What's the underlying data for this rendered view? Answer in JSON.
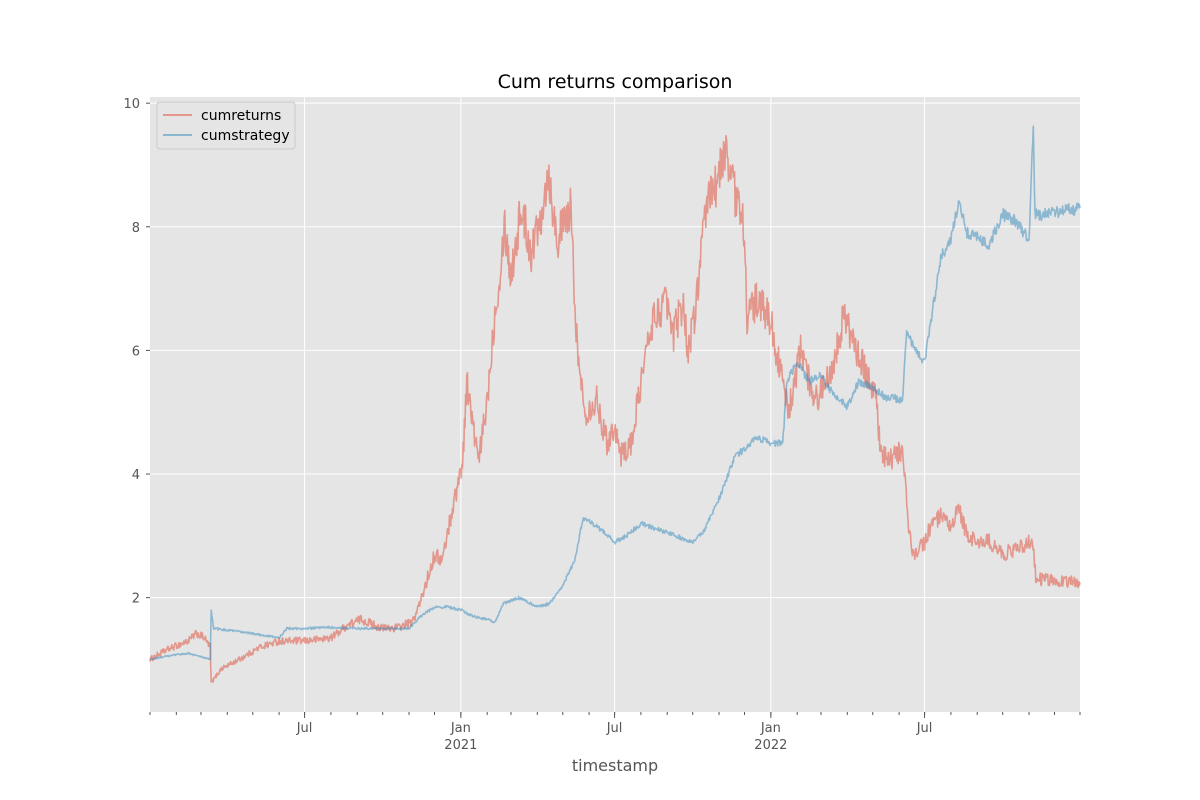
{
  "chart_data": {
    "type": "line",
    "title": "Cum returns comparison",
    "xlabel": "timestamp",
    "ylabel": "",
    "style": "ggplot",
    "grid": true,
    "legend_position": "top-left",
    "xlim": [
      "2020-01-01",
      "2022-12-31"
    ],
    "ylim": [
      0.15,
      10.1
    ],
    "x_ticks": [
      {
        "date": "2020-07-01",
        "label": "Jul",
        "sublabel": ""
      },
      {
        "date": "2021-01-01",
        "label": "Jan",
        "sublabel": "2021"
      },
      {
        "date": "2021-07-01",
        "label": "Jul",
        "sublabel": ""
      },
      {
        "date": "2022-01-01",
        "label": "Jan",
        "sublabel": "2022"
      },
      {
        "date": "2022-07-01",
        "label": "Jul",
        "sublabel": ""
      }
    ],
    "y_ticks": [
      2,
      4,
      6,
      8,
      10
    ],
    "series": [
      {
        "name": "cumreturns",
        "color": "#E24A33",
        "opacity": 0.5,
        "points": [
          [
            "2020-01-01",
            1.0
          ],
          [
            "2020-01-20",
            1.15
          ],
          [
            "2020-02-15",
            1.3
          ],
          [
            "2020-02-25",
            1.42
          ],
          [
            "2020-03-05",
            1.35
          ],
          [
            "2020-03-12",
            1.2
          ],
          [
            "2020-03-13",
            0.62
          ],
          [
            "2020-03-25",
            0.85
          ],
          [
            "2020-04-15",
            1.0
          ],
          [
            "2020-05-10",
            1.2
          ],
          [
            "2020-06-01",
            1.3
          ],
          [
            "2020-07-01",
            1.3
          ],
          [
            "2020-08-01",
            1.35
          ],
          [
            "2020-08-20",
            1.55
          ],
          [
            "2020-09-05",
            1.65
          ],
          [
            "2020-10-01",
            1.5
          ],
          [
            "2020-10-20",
            1.52
          ],
          [
            "2020-11-05",
            1.6
          ],
          [
            "2020-11-15",
            1.95
          ],
          [
            "2020-12-01",
            2.7
          ],
          [
            "2020-12-10",
            2.6
          ],
          [
            "2020-12-20",
            3.3
          ],
          [
            "2021-01-03",
            4.2
          ],
          [
            "2021-01-08",
            5.5
          ],
          [
            "2021-01-15",
            4.8
          ],
          [
            "2021-01-22",
            4.2
          ],
          [
            "2021-02-01",
            5.2
          ],
          [
            "2021-02-10",
            6.6
          ],
          [
            "2021-02-18",
            7.5
          ],
          [
            "2021-02-21",
            8.1
          ],
          [
            "2021-03-01",
            7.2
          ],
          [
            "2021-03-13",
            8.3
          ],
          [
            "2021-03-25",
            7.6
          ],
          [
            "2021-04-05",
            8.2
          ],
          [
            "2021-04-14",
            8.9
          ],
          [
            "2021-04-24",
            7.8
          ],
          [
            "2021-05-05",
            8.1
          ],
          [
            "2021-05-10",
            8.3
          ],
          [
            "2021-05-19",
            5.8
          ],
          [
            "2021-05-28",
            5.0
          ],
          [
            "2021-06-10",
            5.2
          ],
          [
            "2021-06-22",
            4.5
          ],
          [
            "2021-07-01",
            4.8
          ],
          [
            "2021-07-08",
            4.3
          ],
          [
            "2021-07-21",
            4.5
          ],
          [
            "2021-08-01",
            5.5
          ],
          [
            "2021-08-15",
            6.5
          ],
          [
            "2021-09-01",
            6.8
          ],
          [
            "2021-09-07",
            6.2
          ],
          [
            "2021-09-20",
            6.8
          ],
          [
            "2021-09-25",
            6.0
          ],
          [
            "2021-10-03",
            6.5
          ],
          [
            "2021-10-10",
            7.5
          ],
          [
            "2021-10-20",
            8.5
          ],
          [
            "2021-11-01",
            8.8
          ],
          [
            "2021-11-10",
            9.3
          ],
          [
            "2021-11-20",
            8.5
          ],
          [
            "2021-12-01",
            8.0
          ],
          [
            "2021-12-04",
            6.5
          ],
          [
            "2021-12-15",
            6.8
          ],
          [
            "2022-01-01",
            6.5
          ],
          [
            "2022-01-10",
            5.8
          ],
          [
            "2022-01-22",
            5.0
          ],
          [
            "2022-02-05",
            6.0
          ],
          [
            "2022-02-15",
            5.5
          ],
          [
            "2022-02-25",
            5.2
          ],
          [
            "2022-03-15",
            5.8
          ],
          [
            "2022-03-29",
            6.6
          ],
          [
            "2022-04-10",
            6.0
          ],
          [
            "2022-04-25",
            5.6
          ],
          [
            "2022-05-05",
            5.3
          ],
          [
            "2022-05-10",
            4.3
          ],
          [
            "2022-05-20",
            4.2
          ],
          [
            "2022-06-05",
            4.4
          ],
          [
            "2022-06-13",
            3.0
          ],
          [
            "2022-06-18",
            2.7
          ],
          [
            "2022-07-01",
            2.9
          ],
          [
            "2022-07-10",
            3.2
          ],
          [
            "2022-07-20",
            3.3
          ],
          [
            "2022-08-01",
            3.1
          ],
          [
            "2022-08-10",
            3.45
          ],
          [
            "2022-08-20",
            3.0
          ],
          [
            "2022-09-01",
            2.9
          ],
          [
            "2022-09-15",
            2.9
          ],
          [
            "2022-10-01",
            2.7
          ],
          [
            "2022-10-20",
            2.8
          ],
          [
            "2022-11-05",
            2.95
          ],
          [
            "2022-11-09",
            2.3
          ],
          [
            "2022-12-31",
            2.25
          ]
        ]
      },
      {
        "name": "cumstrategy",
        "color": "#348ABD",
        "opacity": 0.5,
        "points": [
          [
            "2020-01-01",
            1.0
          ],
          [
            "2020-01-20",
            1.05
          ],
          [
            "2020-02-15",
            1.1
          ],
          [
            "2020-03-12",
            1.0
          ],
          [
            "2020-03-13",
            1.8
          ],
          [
            "2020-03-16",
            1.5
          ],
          [
            "2020-04-15",
            1.45
          ],
          [
            "2020-05-10",
            1.4
          ],
          [
            "2020-06-01",
            1.35
          ],
          [
            "2020-06-10",
            1.5
          ],
          [
            "2020-07-01",
            1.5
          ],
          [
            "2020-08-01",
            1.52
          ],
          [
            "2020-09-01",
            1.5
          ],
          [
            "2020-10-01",
            1.5
          ],
          [
            "2020-11-01",
            1.5
          ],
          [
            "2020-11-15",
            1.7
          ],
          [
            "2020-12-01",
            1.85
          ],
          [
            "2020-12-15",
            1.85
          ],
          [
            "2021-01-01",
            1.8
          ],
          [
            "2021-01-15",
            1.7
          ],
          [
            "2021-02-01",
            1.65
          ],
          [
            "2021-02-10",
            1.6
          ],
          [
            "2021-02-20",
            1.9
          ],
          [
            "2021-03-10",
            2.0
          ],
          [
            "2021-04-01",
            1.85
          ],
          [
            "2021-04-15",
            1.9
          ],
          [
            "2021-05-01",
            2.2
          ],
          [
            "2021-05-15",
            2.6
          ],
          [
            "2021-05-25",
            3.3
          ],
          [
            "2021-06-15",
            3.1
          ],
          [
            "2021-07-01",
            2.9
          ],
          [
            "2021-07-15",
            3.0
          ],
          [
            "2021-08-01",
            3.2
          ],
          [
            "2021-09-01",
            3.05
          ],
          [
            "2021-10-01",
            2.9
          ],
          [
            "2021-10-15",
            3.1
          ],
          [
            "2021-11-01",
            3.6
          ],
          [
            "2021-11-20",
            4.3
          ],
          [
            "2021-12-01",
            4.4
          ],
          [
            "2021-12-15",
            4.6
          ],
          [
            "2022-01-01",
            4.5
          ],
          [
            "2022-01-15",
            4.5
          ],
          [
            "2022-01-20",
            5.5
          ],
          [
            "2022-02-01",
            5.8
          ],
          [
            "2022-02-15",
            5.5
          ],
          [
            "2022-03-01",
            5.6
          ],
          [
            "2022-03-15",
            5.3
          ],
          [
            "2022-04-01",
            5.1
          ],
          [
            "2022-04-15",
            5.5
          ],
          [
            "2022-05-01",
            5.4
          ],
          [
            "2022-05-15",
            5.25
          ],
          [
            "2022-06-05",
            5.2
          ],
          [
            "2022-06-10",
            6.3
          ],
          [
            "2022-06-20",
            6.0
          ],
          [
            "2022-07-01",
            5.8
          ],
          [
            "2022-07-10",
            6.6
          ],
          [
            "2022-07-20",
            7.5
          ],
          [
            "2022-08-01",
            7.8
          ],
          [
            "2022-08-10",
            8.4
          ],
          [
            "2022-08-20",
            7.9
          ],
          [
            "2022-09-01",
            7.85
          ],
          [
            "2022-09-15",
            7.7
          ],
          [
            "2022-10-01",
            8.2
          ],
          [
            "2022-10-15",
            8.1
          ],
          [
            "2022-11-01",
            7.8
          ],
          [
            "2022-11-06",
            9.7
          ],
          [
            "2022-11-08",
            8.2
          ],
          [
            "2022-11-20",
            8.2
          ],
          [
            "2022-12-31",
            8.3
          ]
        ]
      }
    ]
  }
}
